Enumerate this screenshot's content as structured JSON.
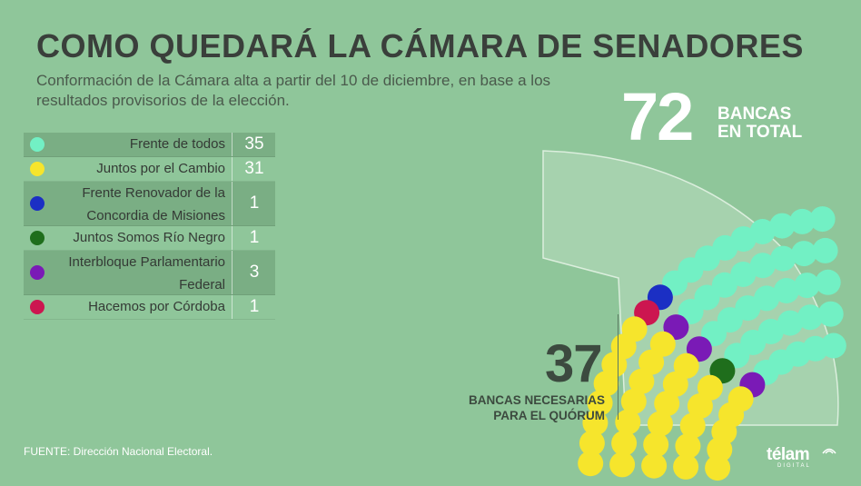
{
  "title": "COMO QUEDARÁ LA CÁMARA DE SENADORES",
  "subtitle": "Conformación de la Cámara alta a partir del 10 de diciembre, en base a los resultados provisorios de la elección.",
  "total": {
    "number": "72",
    "label_line1": "BANCAS",
    "label_line2": "EN TOTAL"
  },
  "quorum": {
    "number": "37",
    "label_line1": "BANCAS NECESARIAS",
    "label_line2": "PARA EL QUÓRUM"
  },
  "legend": [
    {
      "name": "Frente de todos",
      "count": "35",
      "color": "#72f0c4"
    },
    {
      "name": "Juntos por el Cambio",
      "count": "31",
      "color": "#f6e52c"
    },
    {
      "name": "Frente Renovador de la Concordia de Misiones",
      "count": "1",
      "color": "#1b2fc4"
    },
    {
      "name": "Juntos Somos Río Negro",
      "count": "1",
      "color": "#1f6e1c"
    },
    {
      "name": "Interbloque Parlamentario Federal",
      "count": "3",
      "color": "#7a1ab6"
    },
    {
      "name": "Hacemos por Córdoba",
      "count": "1",
      "color": "#cc1650"
    }
  ],
  "source": "FUENTE:  Dirección Nacional Electoral.",
  "logo": {
    "name": "télam",
    "sub": "DIGITAL"
  },
  "chart_data": {
    "type": "parliament",
    "total_seats": 72,
    "majority": 37,
    "series": [
      {
        "name": "Frente de todos",
        "values": [
          35
        ]
      },
      {
        "name": "Juntos por el Cambio",
        "values": [
          31
        ]
      },
      {
        "name": "Frente Renovador de la Concordia de Misiones",
        "values": [
          1
        ]
      },
      {
        "name": "Juntos Somos Río Negro",
        "values": [
          1
        ]
      },
      {
        "name": "Interbloque Parlamentario Federal",
        "values": [
          3
        ]
      },
      {
        "name": "Hacemos por Córdoba",
        "values": [
          1
        ]
      }
    ]
  }
}
